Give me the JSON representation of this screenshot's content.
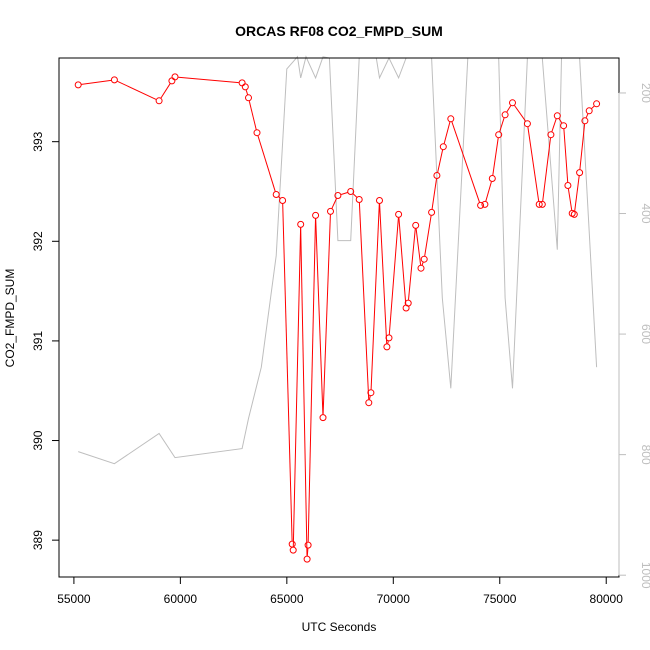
{
  "chart_data": {
    "type": "line",
    "title": "ORCAS RF08 CO2_FMPD_SUM",
    "xlabel": "UTC Seconds",
    "ylabel": "CO2_FMPD_SUM",
    "xlim": [
      54300,
      80600
    ],
    "ylim": [
      388.63,
      393.84
    ],
    "x_ticks": [
      55000,
      60000,
      65000,
      70000,
      75000,
      80000
    ],
    "y_ticks": [
      389,
      390,
      391,
      392,
      393
    ],
    "y2": {
      "ticks": [
        200,
        400,
        600,
        800,
        1000
      ],
      "range": [
        1003,
        142
      ],
      "inverted": true,
      "unlabeled": true
    },
    "grid": false,
    "legend": "none",
    "colors": {
      "co2": "#ff0000",
      "pressure": "#bebebe",
      "axis": "#000000"
    },
    "series": [
      {
        "key": "co2",
        "style": "line-with-open-circles",
        "points": [
          [
            55200,
            393.57
          ],
          [
            56900,
            393.62
          ],
          [
            59000,
            393.41
          ],
          [
            59600,
            393.61
          ],
          [
            59750,
            393.65
          ],
          [
            62900,
            393.59
          ],
          [
            63050,
            393.55
          ],
          [
            63200,
            393.44
          ],
          [
            63600,
            393.09
          ],
          [
            64500,
            392.47
          ],
          [
            64800,
            392.41
          ],
          [
            65250,
            388.96
          ],
          [
            65300,
            388.9
          ],
          [
            65650,
            392.17
          ],
          [
            65950,
            388.81
          ],
          [
            66000,
            388.95
          ],
          [
            66350,
            392.26
          ],
          [
            66700,
            390.23
          ],
          [
            67050,
            392.3
          ],
          [
            67400,
            392.46
          ],
          [
            68000,
            392.5
          ],
          [
            68400,
            392.42
          ],
          [
            68850,
            390.38
          ],
          [
            68950,
            390.48
          ],
          [
            69350,
            392.41
          ],
          [
            69700,
            390.94
          ],
          [
            69800,
            391.03
          ],
          [
            70250,
            392.27
          ],
          [
            70600,
            391.33
          ],
          [
            70700,
            391.38
          ],
          [
            71050,
            392.16
          ],
          [
            71300,
            391.73
          ],
          [
            71450,
            391.82
          ],
          [
            71800,
            392.29
          ],
          [
            72050,
            392.66
          ],
          [
            72350,
            392.95
          ],
          [
            72700,
            393.23
          ],
          [
            74100,
            392.36
          ],
          [
            74300,
            392.37
          ],
          [
            74650,
            392.63
          ],
          [
            74950,
            393.07
          ],
          [
            75250,
            393.27
          ],
          [
            75600,
            393.39
          ],
          [
            76300,
            393.18
          ],
          [
            76850,
            392.37
          ],
          [
            77000,
            392.37
          ],
          [
            77400,
            393.07
          ],
          [
            77700,
            393.26
          ],
          [
            78000,
            393.16
          ],
          [
            78200,
            392.56
          ],
          [
            78400,
            392.28
          ],
          [
            78500,
            392.27
          ],
          [
            78750,
            392.69
          ],
          [
            79000,
            393.21
          ],
          [
            79200,
            393.31
          ],
          [
            79550,
            393.38
          ]
        ]
      },
      {
        "key": "pressure",
        "axis": "right",
        "style": "line",
        "points": [
          [
            55200,
            795
          ],
          [
            56900,
            815
          ],
          [
            59000,
            765
          ],
          [
            59750,
            805
          ],
          [
            62900,
            790
          ],
          [
            63200,
            740
          ],
          [
            63800,
            655
          ],
          [
            64500,
            470
          ],
          [
            65000,
            160
          ],
          [
            65500,
            140
          ],
          [
            65650,
            175
          ],
          [
            65900,
            140
          ],
          [
            66350,
            175
          ],
          [
            66700,
            140
          ],
          [
            67000,
            142
          ],
          [
            67400,
            445
          ],
          [
            68000,
            445
          ],
          [
            68400,
            142
          ],
          [
            68850,
            142
          ],
          [
            69200,
            142
          ],
          [
            69350,
            175
          ],
          [
            69800,
            142
          ],
          [
            70250,
            175
          ],
          [
            70600,
            142
          ],
          [
            71050,
            142
          ],
          [
            71400,
            142
          ],
          [
            71800,
            142
          ],
          [
            72300,
            540
          ],
          [
            72700,
            690
          ],
          [
            73500,
            142
          ],
          [
            74000,
            142
          ],
          [
            74950,
            142
          ],
          [
            75250,
            540
          ],
          [
            75600,
            690
          ],
          [
            76300,
            142
          ],
          [
            77000,
            142
          ],
          [
            77700,
            460
          ],
          [
            77900,
            142
          ],
          [
            78300,
            142
          ],
          [
            78750,
            142
          ],
          [
            79200,
            430
          ],
          [
            79550,
            655
          ]
        ]
      }
    ]
  }
}
